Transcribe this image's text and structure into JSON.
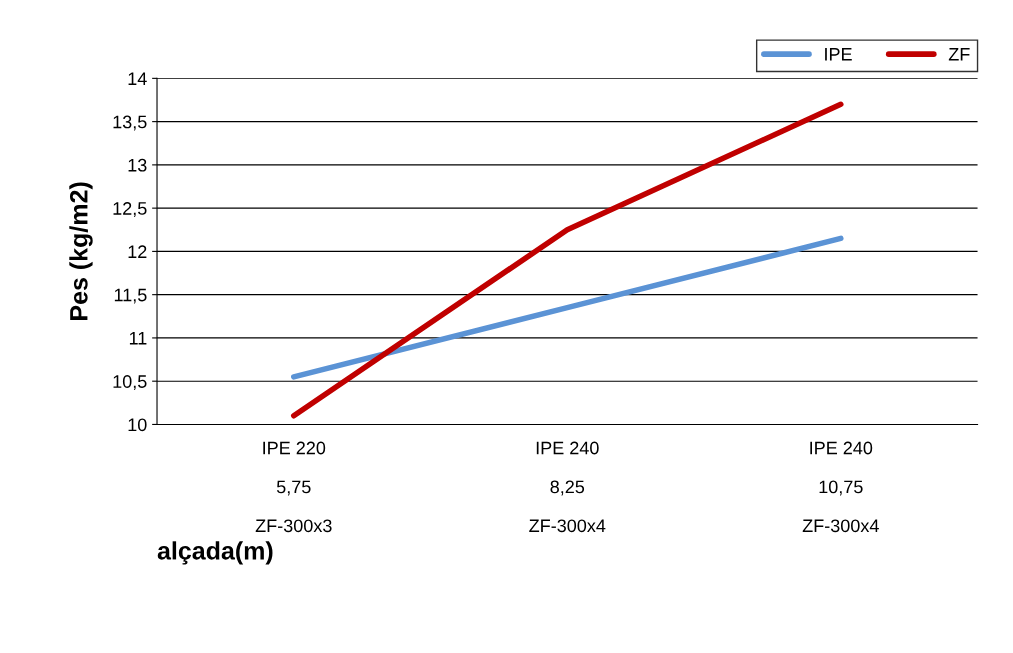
{
  "chart_data": {
    "type": "line",
    "xlabel": "alçada(m)",
    "ylabel": "Pes (kg/m2)",
    "categories": [
      "IPE 220\n\n5,75\n\nZF-300x3",
      "IPE 240\n\n8,25\n\nZF-300x4",
      "IPE 240\n\n10,75\n\nZF-300x4"
    ],
    "series": [
      {
        "name": "IPE",
        "color": "#5b93d5",
        "values": [
          10.55,
          11.35,
          12.15
        ]
      },
      {
        "name": "ZF",
        "color": "#c00000",
        "values": [
          10.1,
          12.25,
          13.7
        ]
      }
    ],
    "ylim": [
      10,
      14
    ],
    "yticks": [
      10,
      {
        "value": 10.5,
        "label": "10,5"
      },
      11,
      {
        "value": 11.5,
        "label": "11,5"
      },
      12,
      {
        "value": 12.5,
        "label": "12,5"
      },
      13,
      {
        "value": 13.5,
        "label": "13,5"
      },
      14
    ],
    "grid": "y",
    "legend": "top right",
    "marker": "none",
    "line_style": "solid"
  }
}
